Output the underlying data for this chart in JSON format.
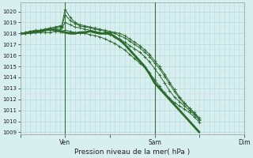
{
  "xlabel": "Pression niveau de la mer( hPa )",
  "bg_color": "#d8efef",
  "grid_major_color": "#b8d8d8",
  "grid_minor_color": "#cce5e5",
  "line_color": "#2d6b2d",
  "ylim": [
    1008.8,
    1020.8
  ],
  "xlim": [
    0,
    216
  ],
  "yticks": [
    1009,
    1010,
    1011,
    1012,
    1013,
    1014,
    1015,
    1016,
    1017,
    1018,
    1019,
    1020
  ],
  "xtick_labels": [
    "",
    "Ven",
    "",
    "Sam",
    "",
    "Dim"
  ],
  "xtick_positions": [
    0,
    54,
    108,
    162,
    216,
    270
  ],
  "vlines": [
    54,
    162,
    270
  ],
  "line_thick_x": [
    0,
    6,
    12,
    18,
    24,
    30,
    36,
    42,
    48,
    54,
    60,
    66,
    72,
    78,
    84,
    90,
    96,
    102,
    108,
    114,
    120,
    126,
    132,
    138,
    144,
    150,
    156,
    162,
    168,
    174,
    180,
    186,
    192,
    198,
    204,
    210,
    216
  ],
  "line_thick_y": [
    1018.0,
    1018.0,
    1018.1,
    1018.1,
    1018.2,
    1018.3,
    1018.4,
    1018.3,
    1018.2,
    1018.1,
    1018.0,
    1018.0,
    1018.1,
    1018.1,
    1018.2,
    1018.1,
    1018.0,
    1018.0,
    1018.0,
    1017.7,
    1017.4,
    1017.0,
    1016.5,
    1016.0,
    1015.5,
    1015.0,
    1014.3,
    1013.5,
    1013.0,
    1012.5,
    1012.0,
    1011.5,
    1011.0,
    1010.5,
    1010.0,
    1009.5,
    1009.0
  ],
  "line_a_x": [
    0,
    6,
    12,
    18,
    24,
    30,
    36,
    42,
    48,
    50,
    54,
    60,
    66,
    72,
    78,
    84,
    90,
    96,
    102,
    108,
    114,
    120,
    126,
    132,
    138,
    144,
    150,
    156,
    162,
    168,
    174,
    180,
    186,
    192,
    198,
    204,
    210,
    216
  ],
  "line_a_y": [
    1018.0,
    1018.1,
    1018.2,
    1018.3,
    1018.3,
    1018.4,
    1018.5,
    1018.6,
    1018.7,
    1018.7,
    1020.2,
    1019.5,
    1019.0,
    1018.8,
    1018.7,
    1018.6,
    1018.5,
    1018.4,
    1018.3,
    1018.2,
    1018.1,
    1018.0,
    1017.8,
    1017.5,
    1017.2,
    1016.9,
    1016.5,
    1016.1,
    1015.5,
    1015.0,
    1014.3,
    1013.6,
    1012.9,
    1012.2,
    1011.7,
    1011.2,
    1010.7,
    1010.2
  ],
  "line_b_x": [
    0,
    6,
    12,
    18,
    24,
    30,
    36,
    42,
    48,
    50,
    54,
    60,
    66,
    72,
    78,
    84,
    90,
    96,
    102,
    108,
    114,
    120,
    126,
    132,
    138,
    144,
    150,
    156,
    162,
    168,
    174,
    180,
    186,
    192,
    198,
    204,
    210,
    216
  ],
  "line_b_y": [
    1018.0,
    1018.1,
    1018.2,
    1018.2,
    1018.3,
    1018.4,
    1018.4,
    1018.5,
    1018.6,
    1018.6,
    1019.7,
    1019.2,
    1018.9,
    1018.7,
    1018.6,
    1018.5,
    1018.4,
    1018.3,
    1018.2,
    1018.1,
    1018.0,
    1017.8,
    1017.6,
    1017.3,
    1017.0,
    1016.7,
    1016.3,
    1015.9,
    1015.3,
    1014.8,
    1014.1,
    1013.4,
    1012.7,
    1012.1,
    1011.6,
    1011.2,
    1010.8,
    1010.3
  ],
  "line_c_x": [
    0,
    6,
    12,
    18,
    24,
    30,
    36,
    42,
    48,
    50,
    54,
    60,
    66,
    72,
    78,
    84,
    90,
    96,
    102,
    108,
    114,
    120,
    126,
    132,
    138,
    144,
    150,
    156,
    162,
    168,
    174,
    180,
    186,
    192,
    198,
    204,
    210,
    216
  ],
  "line_c_y": [
    1018.0,
    1018.0,
    1018.1,
    1018.2,
    1018.2,
    1018.3,
    1018.3,
    1018.4,
    1018.4,
    1018.5,
    1019.0,
    1018.8,
    1018.6,
    1018.5,
    1018.4,
    1018.3,
    1018.2,
    1018.1,
    1018.0,
    1017.9,
    1017.7,
    1017.5,
    1017.2,
    1016.9,
    1016.6,
    1016.3,
    1015.9,
    1015.4,
    1014.8,
    1014.2,
    1013.5,
    1012.8,
    1012.2,
    1011.8,
    1011.4,
    1011.0,
    1010.6,
    1010.1
  ],
  "line_d_x": [
    0,
    6,
    12,
    18,
    24,
    30,
    36,
    42,
    48,
    50,
    54,
    60,
    66,
    72,
    78,
    84,
    90,
    96,
    102,
    108,
    114,
    120,
    126,
    132,
    138,
    144,
    150,
    156,
    162,
    168,
    174,
    180,
    186,
    192,
    198,
    204,
    210,
    216
  ],
  "line_d_y": [
    1018.0,
    1018.0,
    1018.0,
    1018.1,
    1018.1,
    1018.1,
    1018.1,
    1018.2,
    1018.2,
    1018.2,
    1018.3,
    1018.2,
    1018.1,
    1018.0,
    1018.0,
    1017.9,
    1017.8,
    1017.7,
    1017.5,
    1017.3,
    1017.1,
    1016.8,
    1016.5,
    1016.1,
    1015.7,
    1015.3,
    1014.9,
    1014.4,
    1013.8,
    1013.2,
    1012.6,
    1012.1,
    1011.7,
    1011.4,
    1011.1,
    1010.8,
    1010.4,
    1009.9
  ]
}
